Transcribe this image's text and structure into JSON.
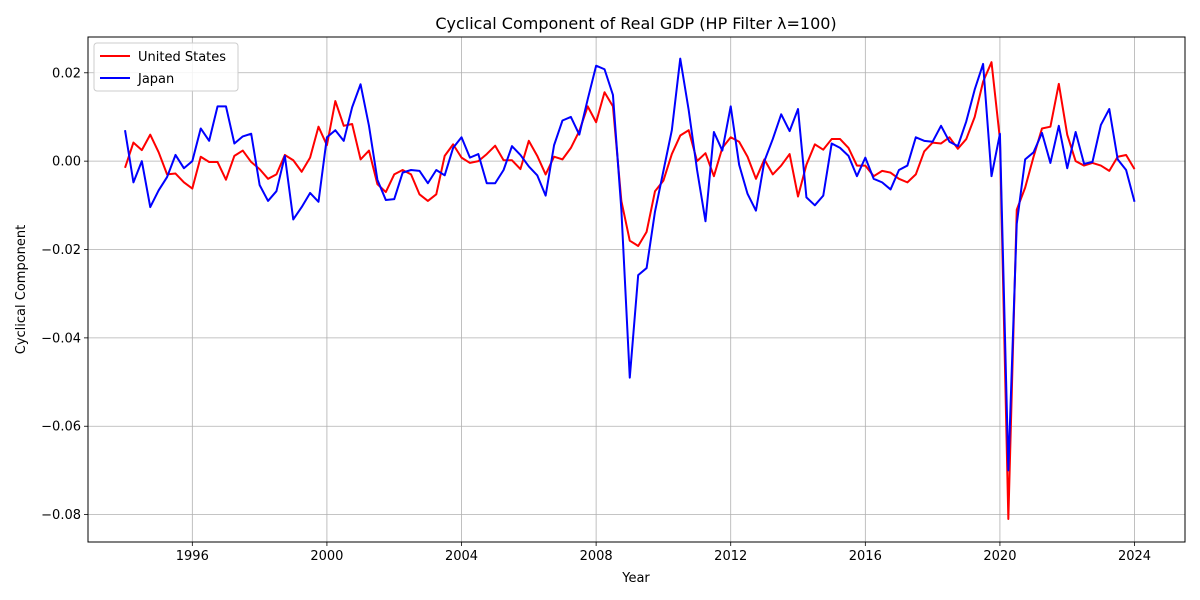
{
  "chart_data": {
    "type": "line",
    "title": "Cyclical Component of Real GDP (HP Filter λ=100)",
    "xlabel": "Year",
    "ylabel": "Cyclical Component",
    "xlim": [
      1992.9,
      2025.5
    ],
    "ylim": [
      -0.0862,
      0.0281
    ],
    "xticks": [
      1996,
      2000,
      2004,
      2008,
      2012,
      2016,
      2020,
      2024
    ],
    "xtick_labels": [
      "1996",
      "2000",
      "2004",
      "2008",
      "2012",
      "2016",
      "2020",
      "2024"
    ],
    "yticks": [
      0.02,
      0.0,
      -0.02,
      -0.04,
      -0.06,
      -0.08
    ],
    "ytick_labels": [
      "0.02",
      "0.00",
      "−0.02",
      "−0.04",
      "−0.06",
      "−0.08"
    ],
    "grid": true,
    "legend_position": "upper-left",
    "x_start": 1994.0,
    "x_step": 0.25,
    "series": [
      {
        "name": "United States",
        "color": "#ff0000",
        "values": [
          -0.0015,
          0.0042,
          0.0025,
          0.006,
          0.002,
          -0.003,
          -0.0028,
          -0.0048,
          -0.0062,
          0.001,
          -0.0002,
          -0.0002,
          -0.0042,
          0.0012,
          0.0024,
          -0.0002,
          -0.0018,
          -0.004,
          -0.003,
          0.0014,
          0.0002,
          -0.0024,
          0.0008,
          0.0078,
          0.0036,
          0.0136,
          0.008,
          0.0084,
          0.0004,
          0.0024,
          -0.0052,
          -0.007,
          -0.003,
          -0.002,
          -0.003,
          -0.0075,
          -0.009,
          -0.0075,
          0.0012,
          0.0038,
          0.0008,
          -0.0004,
          0.0,
          0.0016,
          0.0035,
          0.0002,
          0.0002,
          -0.0018,
          0.0046,
          0.0012,
          -0.003,
          0.001,
          0.0004,
          0.003,
          0.0068,
          0.0124,
          0.0088,
          0.0156,
          0.0124,
          -0.009,
          -0.018,
          -0.0192,
          -0.016,
          -0.0068,
          -0.0044,
          0.0016,
          0.0058,
          0.007,
          0.0,
          0.0018,
          -0.0034,
          0.003,
          0.0054,
          0.0044,
          0.001,
          -0.004,
          0.0004,
          -0.003,
          -0.001,
          0.0016,
          -0.008,
          -0.0008,
          0.0038,
          0.0026,
          0.005,
          0.005,
          0.003,
          -0.001,
          -0.001,
          -0.0034,
          -0.0022,
          -0.0026,
          -0.004,
          -0.0048,
          -0.003,
          0.0022,
          0.0042,
          0.004,
          0.0054,
          0.0028,
          0.005,
          0.01,
          0.018,
          0.0224,
          0.005,
          -0.081,
          -0.011,
          -0.006,
          0.001,
          0.0074,
          0.0078,
          0.0175,
          0.006,
          0.0,
          -0.001,
          -0.0004,
          -0.001,
          -0.0022,
          0.001,
          0.0014,
          -0.0018
        ]
      },
      {
        "name": "Japan",
        "color": "#0000ff",
        "values": [
          0.007,
          -0.0048,
          0.0,
          -0.0104,
          -0.0066,
          -0.0036,
          0.0014,
          -0.0016,
          0.0,
          0.0074,
          0.0046,
          0.0124,
          0.0124,
          0.004,
          0.0056,
          0.0062,
          -0.0054,
          -0.009,
          -0.0068,
          0.0012,
          -0.0132,
          -0.0104,
          -0.0072,
          -0.0092,
          0.0054,
          0.007,
          0.0046,
          0.0122,
          0.0174,
          0.008,
          -0.0042,
          -0.0088,
          -0.0086,
          -0.0026,
          -0.002,
          -0.0022,
          -0.005,
          -0.002,
          -0.0032,
          0.003,
          0.0054,
          0.0008,
          0.0016,
          -0.005,
          -0.005,
          -0.002,
          0.0034,
          0.0014,
          -0.0012,
          -0.0032,
          -0.0078,
          0.0036,
          0.0092,
          0.01,
          0.006,
          0.014,
          0.0216,
          0.0208,
          0.015,
          -0.011,
          -0.049,
          -0.0258,
          -0.0242,
          -0.0114,
          -0.0022,
          0.007,
          0.0232,
          0.0116,
          -0.002,
          -0.0136,
          0.0066,
          0.0024,
          0.0124,
          -0.0008,
          -0.0074,
          -0.0112,
          0.0,
          0.005,
          0.0106,
          0.0068,
          0.0118,
          -0.0082,
          -0.01,
          -0.0078,
          0.004,
          0.003,
          0.0012,
          -0.0034,
          0.0008,
          -0.004,
          -0.0048,
          -0.0064,
          -0.002,
          -0.001,
          0.0054,
          0.0046,
          0.0044,
          0.008,
          0.0044,
          0.0034,
          0.009,
          0.0162,
          0.022,
          -0.0034,
          0.0062,
          -0.07,
          -0.0142,
          0.0004,
          0.002,
          0.0064,
          -0.0004,
          0.008,
          -0.0016,
          0.0066,
          -0.0006,
          -0.0002,
          0.0082,
          0.0118,
          0.0004,
          -0.002,
          -0.0092
        ]
      }
    ]
  }
}
